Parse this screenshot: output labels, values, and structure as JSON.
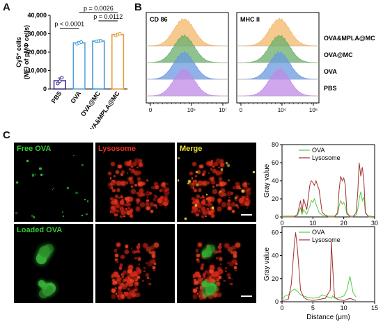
{
  "panels": {
    "a": "A",
    "b": "B",
    "c": "C"
  },
  "chart_data": [
    {
      "type": "bar",
      "panel": "A",
      "categories": [
        "PBS",
        "OVA",
        "OVA@MC",
        "OVA&MPLA@MC"
      ],
      "values": [
        4500,
        25000,
        26000,
        29500
      ],
      "errors": [
        1500,
        800,
        400,
        800
      ],
      "points": [
        [
          3000,
          4200,
          6200
        ],
        [
          24500,
          25000,
          25500
        ],
        [
          25800,
          26000,
          26200
        ],
        [
          29000,
          29500,
          30000
        ]
      ],
      "colors": [
        "#3a2a8c",
        "#4aa3e0",
        "#3b8fd0",
        "#e79a3a"
      ],
      "ylabel_line1": "Cy5⁺ cells",
      "ylabel_line2": "(MFI of pMΦ cells)",
      "yticks": [
        "0",
        "10,000",
        "20,000",
        "30,000",
        "40,000"
      ],
      "ylim": [
        0,
        40000
      ],
      "significance": [
        {
          "pair": [
            "PBS",
            "OVA"
          ],
          "label": "p < 0.0001"
        },
        {
          "pair": [
            "OVA",
            "OVA&MPLA@MC"
          ],
          "label": "p = 0.0026"
        },
        {
          "pair": [
            "OVA@MC",
            "OVA&MPLA@MC"
          ],
          "label": "p = 0.0112"
        }
      ]
    },
    {
      "type": "area",
      "panel": "B",
      "plots": [
        {
          "title": "CD 86",
          "xticks": [
            "0",
            "10⁵",
            "10⁷"
          ]
        },
        {
          "title": "MHC II",
          "xticks": [
            "0",
            "10⁴",
            "10⁶"
          ]
        }
      ],
      "series": [
        {
          "name": "OVA&MPLA@MC",
          "color": "#f3b76a"
        },
        {
          "name": "OVA@MC",
          "color": "#6aae6a"
        },
        {
          "name": "OVA",
          "color": "#6a9ae0"
        },
        {
          "name": "PBS",
          "color": "#c08ae6"
        }
      ]
    },
    {
      "type": "line",
      "panel": "C-top",
      "ylabel": "Gray value",
      "xlim": [
        0,
        30
      ],
      "ylim": [
        0,
        80
      ],
      "xticks": [
        "0",
        "10",
        "20",
        "30"
      ],
      "yticks": [
        "0",
        "20",
        "40",
        "60",
        "80"
      ],
      "series": [
        {
          "name": "OVA",
          "color": "#55cc44",
          "x": [
            0,
            4,
            5,
            6,
            6.5,
            7,
            8,
            9,
            9.5,
            10,
            10.5,
            11,
            12,
            13,
            14,
            15,
            17,
            18,
            18.5,
            19,
            19.5,
            20,
            20.5,
            21,
            22,
            23,
            24,
            24.5,
            25,
            25.5,
            26,
            26.5,
            27,
            28,
            29
          ],
          "y": [
            1,
            1,
            2,
            10,
            3,
            8,
            3,
            12,
            18,
            16,
            20,
            14,
            5,
            2,
            2,
            1,
            1,
            3,
            12,
            18,
            14,
            16,
            12,
            3,
            1,
            1,
            2,
            8,
            20,
            28,
            18,
            22,
            4,
            1,
            1
          ]
        },
        {
          "name": "Lysosome",
          "color": "#a03030",
          "x": [
            0,
            4,
            5,
            6,
            6.5,
            7,
            8,
            9,
            9.5,
            10,
            10.5,
            11,
            12,
            13,
            14,
            15,
            17,
            18,
            18.5,
            19,
            19.5,
            20,
            20.5,
            21,
            22,
            23,
            24,
            24.5,
            25,
            25.5,
            26,
            26.5,
            27,
            28,
            29
          ],
          "y": [
            0,
            0,
            3,
            18,
            5,
            20,
            8,
            35,
            40,
            38,
            35,
            40,
            30,
            5,
            2,
            0,
            0,
            5,
            30,
            45,
            40,
            43,
            35,
            5,
            0,
            0,
            5,
            25,
            60,
            45,
            55,
            40,
            5,
            0,
            0
          ]
        }
      ]
    },
    {
      "type": "line",
      "panel": "C-bottom",
      "ylabel": "Gray value",
      "xlabel": "Distance (μm)",
      "xlim": [
        0,
        15
      ],
      "ylim": [
        0,
        65
      ],
      "xticks": [
        "0",
        "5",
        "10",
        "15"
      ],
      "yticks": [
        "0",
        "20",
        "40",
        "60"
      ],
      "series": [
        {
          "name": "OVA",
          "color": "#55cc44",
          "x": [
            0,
            0.5,
            1,
            1.5,
            2,
            2.5,
            3,
            3.5,
            4,
            5,
            6,
            6.5,
            7,
            8,
            8.2,
            8.5,
            9,
            10,
            10.5,
            11,
            11.5,
            12
          ],
          "y": [
            2,
            5,
            6,
            9,
            11,
            9,
            6,
            5,
            4,
            3,
            4,
            6,
            5,
            3,
            5,
            3,
            3,
            5,
            10,
            22,
            8,
            4
          ]
        },
        {
          "name": "Lysosome",
          "color": "#a03030",
          "x": [
            0,
            1,
            1.5,
            2,
            2.2,
            2.5,
            3,
            3.5,
            4,
            5,
            6,
            7,
            7.8,
            8,
            8.2,
            8.5,
            9,
            10,
            11,
            11.5,
            12
          ],
          "y": [
            1,
            2,
            15,
            50,
            60,
            45,
            10,
            4,
            2,
            1,
            2,
            3,
            10,
            52,
            30,
            4,
            2,
            1,
            3,
            2,
            1
          ]
        }
      ]
    }
  ],
  "microscopy": {
    "rows": [
      {
        "labels": [
          "Free OVA",
          "Lysosome",
          "Merge"
        ]
      },
      {
        "labels": [
          "Loaded OVA",
          "",
          ""
        ]
      }
    ],
    "label_colors": [
      "#33cc33",
      "#e03020",
      "#e8e030"
    ]
  }
}
